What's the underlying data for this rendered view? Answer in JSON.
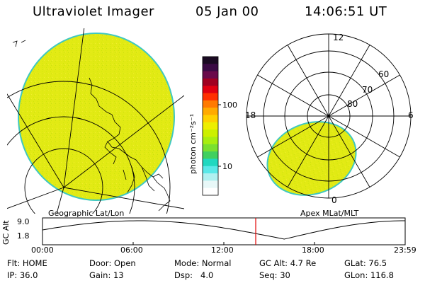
{
  "header": {
    "title": "Ultraviolet Imager",
    "date": "05 Jan 00",
    "time": "14:06:51 UT"
  },
  "geo_panel": {
    "label": "Geographic Lat/Lon"
  },
  "colorbar": {
    "unit_label": "photon cm⁻²s⁻¹",
    "tick_labels": [
      "100",
      "10"
    ],
    "ticks": [
      100,
      10
    ],
    "colors": [
      "#1a0a22",
      "#3a0a44",
      "#6a0a4a",
      "#a00020",
      "#e00010",
      "#ff3000",
      "#ff7a00",
      "#ffaa00",
      "#ffd000",
      "#eeee00",
      "#ccf000",
      "#a8ee10",
      "#7ae030",
      "#40d060",
      "#20d8c0",
      "#5ae8e8",
      "#b0f0f0",
      "#e8f8f8",
      "#ffffff"
    ]
  },
  "polar_panel": {
    "label": "Apex MLat/MLT",
    "mlt_labels": {
      "top": "12",
      "left": "18",
      "right": "6",
      "bottom": "0"
    },
    "lat_labels": [
      "60",
      "70",
      "80"
    ]
  },
  "timeline": {
    "axis_label": "GC Alt",
    "ytick_labels": [
      "9.0",
      "1.8"
    ],
    "xtick_labels": [
      "00:00",
      "06:00",
      "12:00",
      "18:00",
      "23:59"
    ],
    "current_time_hours": 14.11,
    "marker_color": "#e00000"
  },
  "status": {
    "row1": [
      {
        "label": "Flt:",
        "value": "HOME"
      },
      {
        "label": "Door:",
        "value": "Open"
      },
      {
        "label": "Mode:",
        "value": "Normal"
      },
      {
        "label": "GC Alt:",
        "value": "4.7 Re"
      },
      {
        "label": "GLat:",
        "value": "76.5"
      }
    ],
    "row2": [
      {
        "label": "IP:",
        "value": "36.0"
      },
      {
        "label": "Gain:",
        "value": "13"
      },
      {
        "label": "Dsp:",
        "value": "4.0"
      },
      {
        "label": "Seq:",
        "value": "30"
      },
      {
        "label": "GLon:",
        "value": "116.8"
      }
    ]
  },
  "image_colors": {
    "aurora": "#e4ec18",
    "edge": "#40c8c0",
    "grid": "#000000"
  }
}
